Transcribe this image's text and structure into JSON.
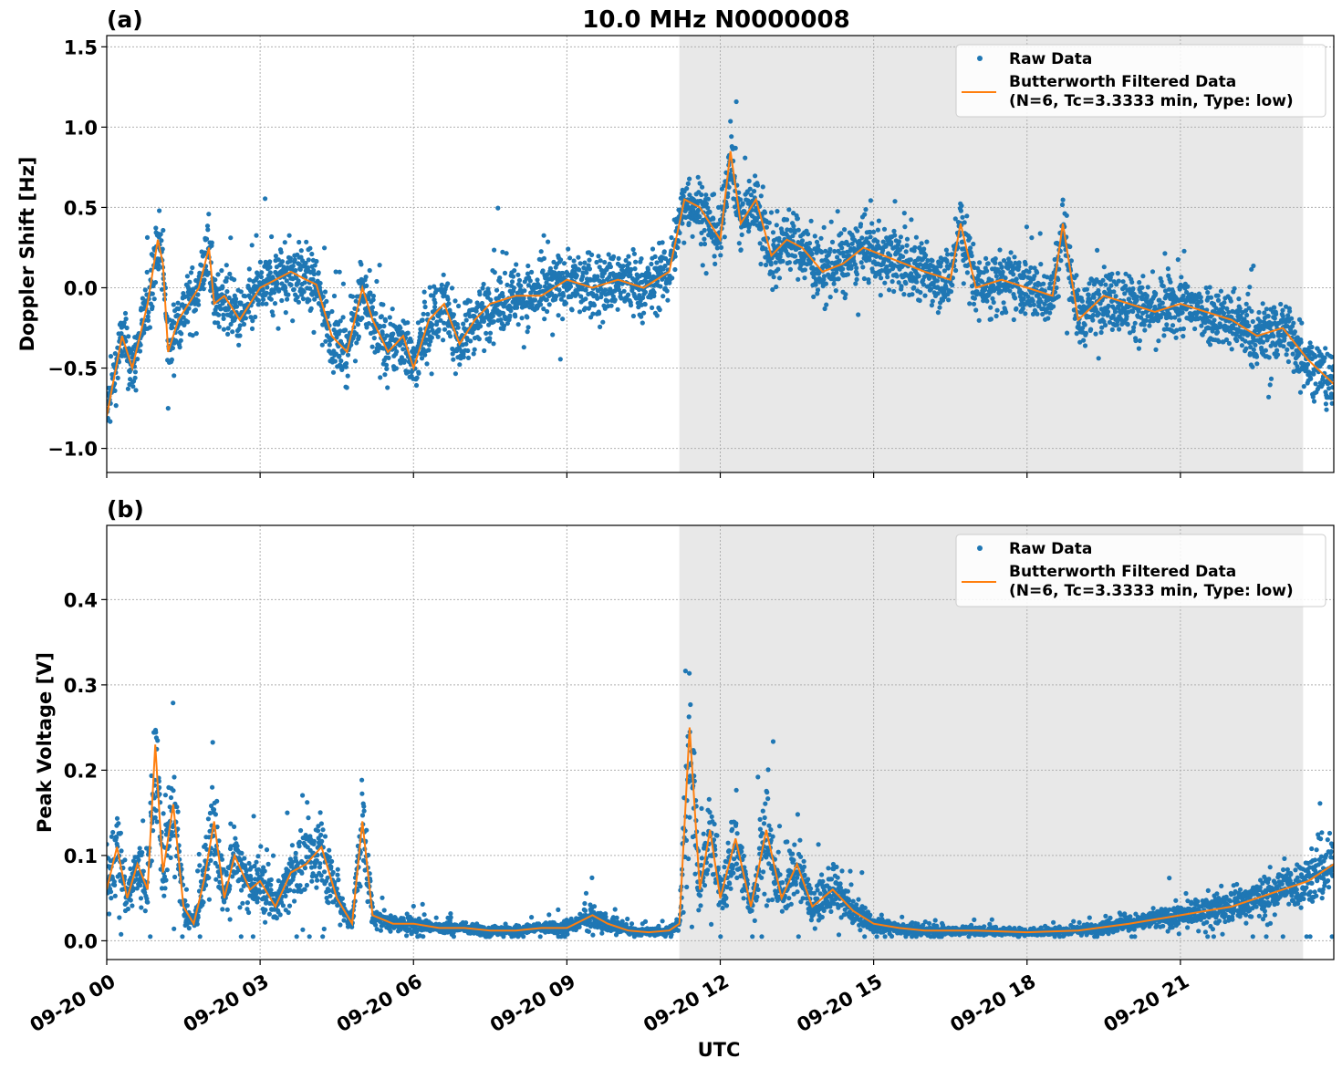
{
  "title": "10.0 MHz N0000008",
  "xlabel": "UTC",
  "x_tick_labels": [
    "09-20 00",
    "09-20 03",
    "09-20 06",
    "09-20 09",
    "09-20 12",
    "09-20 15",
    "09-20 18",
    "09-20 21"
  ],
  "legend": {
    "raw": "Raw Data",
    "filtered_line1": "Butterworth Filtered Data",
    "filtered_line2": "(N=6, Tc=3.3333 min, Type: low)"
  },
  "colors": {
    "raw": "#1f77b4",
    "filtered": "#ff7f0e",
    "shade": "#e8e8e8",
    "grid": "#b0b0b0"
  },
  "chart_data": [
    {
      "type": "scatter",
      "panel_label": "(a)",
      "ylabel": "Doppler Shift [Hz]",
      "xlim_hours": [
        0,
        24
      ],
      "ylim": [
        -1.15,
        1.57
      ],
      "y_ticks": [
        -1.0,
        -0.5,
        0.0,
        0.5,
        1.0,
        1.5
      ],
      "y_tick_labels": [
        "−1.0",
        "−0.5",
        "0.0",
        "0.5",
        "1.0",
        "1.5"
      ],
      "shaded_range_hours": [
        11.2,
        23.4
      ],
      "grid": true,
      "legend_position": "top-right",
      "series": [
        {
          "name": "Butterworth Filtered Data",
          "type": "line",
          "x_hours": [
            0,
            0.3,
            0.5,
            0.8,
            1.0,
            1.1,
            1.2,
            1.4,
            1.6,
            1.8,
            2.0,
            2.1,
            2.3,
            2.6,
            3.0,
            3.3,
            3.6,
            3.9,
            4.1,
            4.4,
            4.7,
            5.0,
            5.2,
            5.5,
            5.8,
            6.0,
            6.3,
            6.6,
            6.9,
            7.2,
            7.5,
            8.0,
            8.5,
            9.0,
            9.5,
            10.0,
            10.5,
            11.0,
            11.3,
            11.6,
            12.0,
            12.2,
            12.4,
            12.7,
            13.0,
            13.3,
            13.6,
            14.0,
            14.4,
            14.8,
            15.2,
            15.6,
            16.0,
            16.5,
            16.7,
            17.0,
            17.5,
            18.0,
            18.5,
            18.7,
            19.0,
            19.5,
            20.0,
            20.5,
            21.0,
            21.5,
            22.0,
            22.5,
            23.0,
            23.5,
            24.0
          ],
          "y": [
            -0.8,
            -0.3,
            -0.5,
            -0.1,
            0.3,
            0.15,
            -0.4,
            -0.2,
            -0.1,
            0.0,
            0.25,
            -0.1,
            -0.05,
            -0.2,
            0.0,
            0.05,
            0.1,
            0.05,
            0.02,
            -0.3,
            -0.4,
            0.0,
            -0.2,
            -0.4,
            -0.3,
            -0.5,
            -0.2,
            -0.1,
            -0.35,
            -0.2,
            -0.1,
            -0.05,
            -0.05,
            0.05,
            0.0,
            0.05,
            0.0,
            0.1,
            0.55,
            0.5,
            0.3,
            0.85,
            0.4,
            0.55,
            0.2,
            0.3,
            0.25,
            0.1,
            0.15,
            0.25,
            0.2,
            0.15,
            0.1,
            0.05,
            0.4,
            0.0,
            0.05,
            0.0,
            -0.05,
            0.4,
            -0.2,
            -0.05,
            -0.1,
            -0.15,
            -0.1,
            -0.15,
            -0.2,
            -0.3,
            -0.25,
            -0.45,
            -0.6
          ]
        }
      ]
    },
    {
      "type": "scatter",
      "panel_label": "(b)",
      "ylabel": "Peak Voltage [V]",
      "xlim_hours": [
        0,
        24
      ],
      "ylim": [
        -0.022,
        0.487
      ],
      "y_ticks": [
        0.0,
        0.1,
        0.2,
        0.3,
        0.4
      ],
      "y_tick_labels": [
        "0.0",
        "0.1",
        "0.2",
        "0.3",
        "0.4"
      ],
      "shaded_range_hours": [
        11.2,
        23.4
      ],
      "grid": true,
      "legend_position": "top-right",
      "series": [
        {
          "name": "Butterworth Filtered Data",
          "type": "line",
          "x_hours": [
            0,
            0.2,
            0.4,
            0.6,
            0.8,
            0.95,
            1.1,
            1.3,
            1.5,
            1.7,
            1.9,
            2.1,
            2.3,
            2.5,
            2.8,
            3.0,
            3.3,
            3.6,
            3.9,
            4.2,
            4.5,
            4.8,
            5.0,
            5.2,
            5.6,
            6.0,
            6.5,
            7.0,
            7.5,
            8.0,
            8.5,
            9.0,
            9.5,
            9.8,
            10.2,
            10.6,
            11.0,
            11.2,
            11.4,
            11.6,
            11.8,
            12.0,
            12.3,
            12.6,
            12.9,
            13.2,
            13.5,
            13.8,
            14.2,
            14.6,
            15.0,
            15.5,
            16.0,
            17.0,
            18.0,
            19.0,
            20.0,
            20.5,
            21.0,
            21.5,
            22.0,
            22.5,
            23.0,
            23.5,
            24.0
          ],
          "y": [
            0.06,
            0.11,
            0.05,
            0.09,
            0.06,
            0.23,
            0.08,
            0.16,
            0.04,
            0.02,
            0.07,
            0.14,
            0.05,
            0.1,
            0.06,
            0.07,
            0.04,
            0.08,
            0.09,
            0.11,
            0.05,
            0.02,
            0.14,
            0.03,
            0.02,
            0.02,
            0.015,
            0.015,
            0.012,
            0.012,
            0.015,
            0.015,
            0.03,
            0.02,
            0.012,
            0.01,
            0.012,
            0.02,
            0.25,
            0.06,
            0.13,
            0.05,
            0.12,
            0.04,
            0.13,
            0.05,
            0.09,
            0.04,
            0.06,
            0.035,
            0.02,
            0.015,
            0.012,
            0.012,
            0.01,
            0.012,
            0.02,
            0.025,
            0.03,
            0.035,
            0.04,
            0.05,
            0.06,
            0.07,
            0.09
          ]
        }
      ]
    }
  ]
}
